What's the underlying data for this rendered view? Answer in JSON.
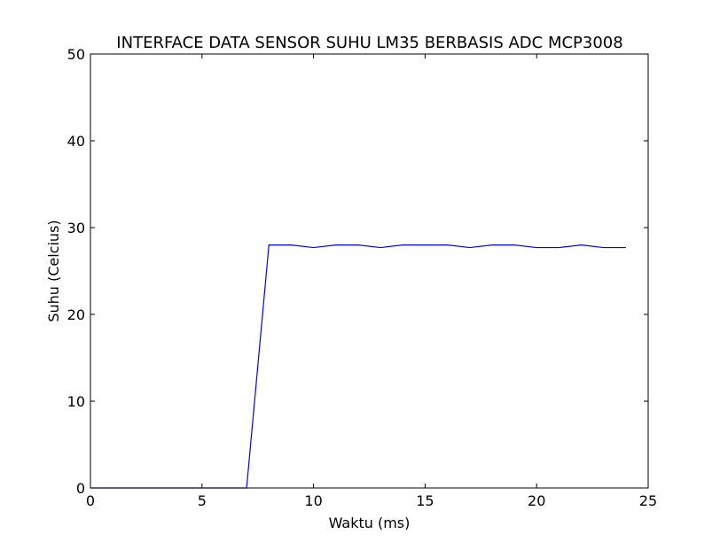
{
  "chart_data": {
    "type": "line",
    "title": "INTERFACE DATA SENSOR SUHU LM35 BERBASIS ADC MCP3008",
    "xlabel": "Waktu (ms)",
    "ylabel": "Suhu (Celcius)",
    "xlim": [
      0,
      25
    ],
    "ylim": [
      0,
      50
    ],
    "xticks": [
      0,
      5,
      10,
      15,
      20,
      25
    ],
    "yticks": [
      0,
      10,
      20,
      30,
      40,
      50
    ],
    "grid": false,
    "line_color": "#0000ff",
    "series": [
      {
        "x": [
          0,
          1,
          2,
          3,
          4,
          5,
          6,
          7,
          8,
          9,
          10,
          11,
          12,
          13,
          14,
          15,
          16,
          17,
          18,
          19,
          20,
          21,
          22,
          23,
          24
        ],
        "y": [
          0,
          0,
          0,
          0,
          0,
          0,
          0,
          0,
          28.0,
          28.0,
          27.7,
          28.0,
          28.0,
          27.7,
          28.0,
          28.0,
          28.0,
          27.7,
          28.0,
          28.0,
          27.7,
          27.7,
          28.0,
          27.7,
          27.7
        ]
      }
    ]
  }
}
